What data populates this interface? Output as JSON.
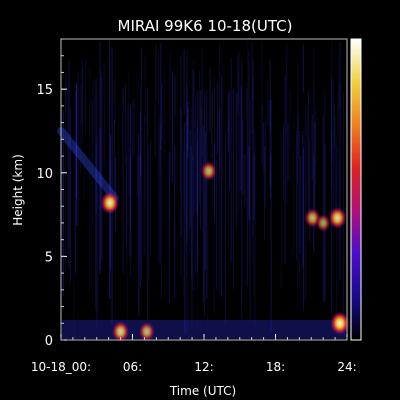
{
  "chart_data": {
    "type": "heatmap",
    "title": "MIRAI 99K6 10-18(UTC)",
    "xlabel": "Time (UTC)",
    "ylabel": "Height (km)",
    "x_ticks": [
      {
        "value": 0,
        "label": "10-18_00:"
      },
      {
        "value": 6,
        "label": "06:"
      },
      {
        "value": 12,
        "label": "12:"
      },
      {
        "value": 18,
        "label": "18:"
      },
      {
        "value": 24,
        "label": "24:"
      }
    ],
    "y_ticks": [
      {
        "value": 0,
        "label": "0"
      },
      {
        "value": 5,
        "label": "5"
      },
      {
        "value": 10,
        "label": "10"
      },
      {
        "value": 15,
        "label": "15"
      }
    ],
    "xlim": [
      0,
      24
    ],
    "ylim": [
      0,
      18
    ],
    "colorbar": {
      "colors": [
        "#000000",
        "#1a0a8a",
        "#4b0bd0",
        "#b0107a",
        "#e02020",
        "#f08020",
        "#f0d040",
        "#ffffff"
      ]
    },
    "features": [
      {
        "name": "cirrus band",
        "x": [
          0,
          4.5
        ],
        "y": [
          12.5,
          8.5
        ],
        "intensity": 0.35
      },
      {
        "name": "echo 04h",
        "x": 4.1,
        "y": 8.2,
        "intensity": 0.9
      },
      {
        "name": "echo 12h",
        "x": 12.4,
        "y": 10.1,
        "intensity": 0.7
      },
      {
        "name": "echo 23h",
        "x": 23.2,
        "y": 7.3,
        "intensity": 0.85
      },
      {
        "name": "echo 21h",
        "x": 21.1,
        "y": 7.3,
        "intensity": 0.7
      },
      {
        "name": "echo 22h",
        "x": 22.0,
        "y": 7.0,
        "intensity": 0.6
      },
      {
        "name": "surface 05h",
        "x": 5.0,
        "y": 0.5,
        "intensity": 0.8
      },
      {
        "name": "surface 07h",
        "x": 7.2,
        "y": 0.5,
        "intensity": 0.7
      },
      {
        "name": "surface 23h",
        "x": 23.4,
        "y": 1.0,
        "intensity": 0.95
      }
    ]
  }
}
